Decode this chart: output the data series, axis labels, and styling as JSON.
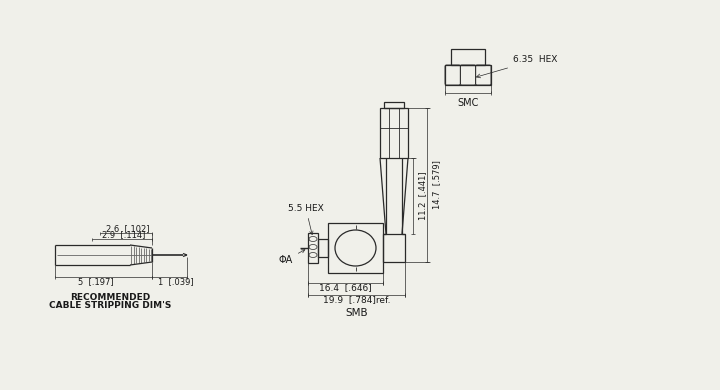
{
  "bg_color": "#f0f0ea",
  "line_color": "#2a2a2a",
  "text_color": "#1a1a1a",
  "linewidth": 0.9,
  "thin_lw": 0.6,
  "dim_lw": 0.5,
  "smc_label": "SMC",
  "smc_hex_label": "6.35  HEX",
  "smb_label": "SMB",
  "smb_hex_label": "5.5 HEX",
  "cable_label1": "RECOMMENDED",
  "cable_label2": "CABLE STRIPPING DIM'S",
  "dim_26": "2.6  [.102]",
  "dim_29": "2.9  [.114]",
  "dim_5": "5  [.197]",
  "dim_1": "1  [.039]",
  "dim_phia": "ΦA",
  "dim_164": "16.4  [.646]",
  "dim_199": "19.9  [.784]ref.",
  "dim_112": "11.2  [.441]",
  "dim_147": "14.7  [.579]"
}
